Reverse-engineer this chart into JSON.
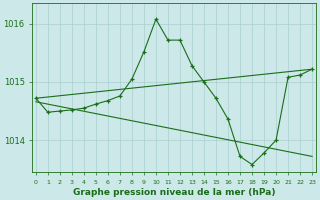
{
  "title": "Graphe pression niveau de la mer (hPa)",
  "xlabel_ticks": [
    "0",
    "1",
    "2",
    "3",
    "4",
    "5",
    "6",
    "7",
    "8",
    "9",
    "10",
    "11",
    "12",
    "13",
    "14",
    "15",
    "16",
    "17",
    "18",
    "19",
    "20",
    "21",
    "22",
    "23"
  ],
  "yticks": [
    1014,
    1015,
    1016
  ],
  "ylim": [
    1013.45,
    1016.35
  ],
  "xlim": [
    -0.3,
    23.3
  ],
  "background_color": "#cce8e8",
  "grid_color": "#aacfcf",
  "line_color": "#1a6e1a",
  "text_color": "#1a6e1a",
  "line1_x": [
    0,
    1,
    2,
    3,
    4,
    5,
    6,
    7,
    8,
    9,
    10,
    11,
    12,
    13,
    14,
    15,
    16,
    17,
    18,
    19,
    20,
    21,
    22,
    23
  ],
  "line1_y": [
    1014.72,
    1014.48,
    1014.5,
    1014.52,
    1014.55,
    1014.62,
    1014.68,
    1014.76,
    1015.05,
    1015.52,
    1016.08,
    1015.72,
    1015.72,
    1015.28,
    1015.0,
    1014.72,
    1014.36,
    1013.72,
    1013.58,
    1013.78,
    1014.0,
    1015.08,
    1015.12,
    1015.22
  ],
  "line2_x": [
    0,
    23
  ],
  "line2_y": [
    1014.72,
    1015.22
  ],
  "line3_x": [
    0,
    23
  ],
  "line3_y": [
    1014.66,
    1013.72
  ]
}
